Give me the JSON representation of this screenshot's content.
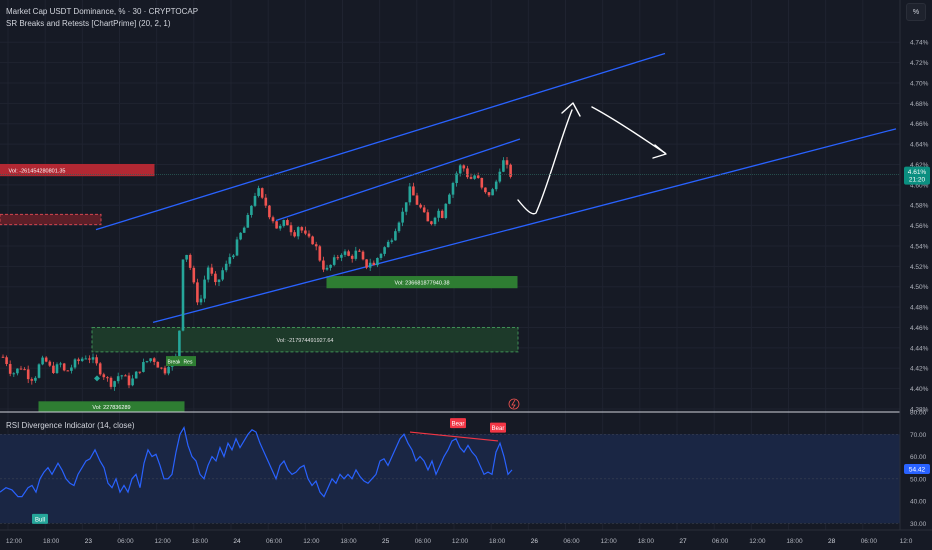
{
  "header": {
    "title": "Market Cap USDT Dominance, % · 30 · CRYPTOCAP",
    "indicator": "SR Breaks and Retests [ChartPrime] (20, 2, 1)",
    "scale_button": "%"
  },
  "rsi_panel": {
    "title": "RSI Divergence Indicator (14, close)"
  },
  "colors": {
    "bg": "#161a25",
    "up": "#26a69a",
    "down": "#ef5350",
    "channel": "#2962ff",
    "rsi": "#2962ff",
    "bear": "#f23645",
    "bull": "#26a69a"
  },
  "chart_data": {
    "type": "candlestick",
    "price_axis": {
      "ticks": [
        "4.74%",
        "4.72%",
        "4.70%",
        "4.68%",
        "4.66%",
        "4.64%",
        "4.62%",
        "4.60%",
        "4.58%",
        "4.56%",
        "4.54%",
        "4.52%",
        "4.50%",
        "4.48%",
        "4.46%",
        "4.44%",
        "4.42%",
        "4.40%",
        "4.38%"
      ],
      "range": [
        4.377,
        4.753
      ]
    },
    "time_axis": {
      "labels": [
        "12:00",
        "18:00",
        "23",
        "06:00",
        "12:00",
        "18:00",
        "24",
        "06:00",
        "12:00",
        "18:00",
        "25",
        "06:00",
        "12:00",
        "18:00",
        "26",
        "06:00",
        "12:00",
        "18:00",
        "27",
        "06:00",
        "12:00",
        "18:00",
        "28",
        "06:00",
        "12:0"
      ]
    },
    "last_price": {
      "value": "4.61%",
      "countdown": "21:20",
      "price": 4.61
    },
    "close_path": [
      [
        0,
        4.432
      ],
      [
        5,
        4.43
      ],
      [
        10,
        4.418
      ],
      [
        15,
        4.415
      ],
      [
        20,
        4.422
      ],
      [
        25,
        4.418
      ],
      [
        30,
        4.41
      ],
      [
        35,
        4.412
      ],
      [
        40,
        4.425
      ],
      [
        45,
        4.428
      ],
      [
        50,
        4.42
      ],
      [
        55,
        4.418
      ],
      [
        60,
        4.425
      ],
      [
        65,
        4.415
      ],
      [
        70,
        4.42
      ],
      [
        75,
        4.425
      ],
      [
        80,
        4.428
      ],
      [
        85,
        4.432
      ],
      [
        90,
        4.43
      ],
      [
        95,
        4.425
      ],
      [
        100,
        4.418
      ],
      [
        105,
        4.412
      ],
      [
        110,
        4.405
      ],
      [
        115,
        4.408
      ],
      [
        120,
        4.415
      ],
      [
        125,
        4.41
      ],
      [
        130,
        4.405
      ],
      [
        135,
        4.412
      ],
      [
        140,
        4.42
      ],
      [
        145,
        4.425
      ],
      [
        150,
        4.43
      ],
      [
        155,
        4.428
      ],
      [
        160,
        4.42
      ],
      [
        165,
        4.418
      ],
      [
        170,
        4.428
      ],
      [
        175,
        4.43
      ],
      [
        178,
        4.43
      ],
      [
        180,
        4.47
      ],
      [
        183,
        4.53
      ],
      [
        186,
        4.535
      ],
      [
        190,
        4.52
      ],
      [
        193,
        4.505
      ],
      [
        196,
        4.49
      ],
      [
        199,
        4.485
      ],
      [
        202,
        4.49
      ],
      [
        205,
        4.51
      ],
      [
        208,
        4.52
      ],
      [
        212,
        4.51
      ],
      [
        215,
        4.5
      ],
      [
        218,
        4.505
      ],
      [
        222,
        4.515
      ],
      [
        226,
        4.52
      ],
      [
        230,
        4.53
      ],
      [
        234,
        4.535
      ],
      [
        238,
        4.545
      ],
      [
        242,
        4.555
      ],
      [
        246,
        4.56
      ],
      [
        250,
        4.575
      ],
      [
        254,
        4.59
      ],
      [
        258,
        4.595
      ],
      [
        262,
        4.585
      ],
      [
        266,
        4.58
      ],
      [
        270,
        4.57
      ],
      [
        274,
        4.565
      ],
      [
        278,
        4.555
      ],
      [
        282,
        4.56
      ],
      [
        286,
        4.565
      ],
      [
        290,
        4.558
      ],
      [
        294,
        4.552
      ],
      [
        298,
        4.56
      ],
      [
        302,
        4.555
      ],
      [
        306,
        4.548
      ],
      [
        310,
        4.545
      ],
      [
        314,
        4.545
      ],
      [
        318,
        4.532
      ],
      [
        322,
        4.522
      ],
      [
        326,
        4.515
      ],
      [
        330,
        4.52
      ],
      [
        334,
        4.525
      ],
      [
        338,
        4.53
      ],
      [
        342,
        4.535
      ],
      [
        346,
        4.532
      ],
      [
        350,
        4.528
      ],
      [
        354,
        4.532
      ],
      [
        358,
        4.535
      ],
      [
        362,
        4.525
      ],
      [
        366,
        4.52
      ],
      [
        370,
        4.525
      ],
      [
        374,
        4.52
      ],
      [
        378,
        4.53
      ],
      [
        382,
        4.535
      ],
      [
        386,
        4.54
      ],
      [
        390,
        4.545
      ],
      [
        394,
        4.555
      ],
      [
        398,
        4.565
      ],
      [
        402,
        4.57
      ],
      [
        406,
        4.585
      ],
      [
        410,
        4.595
      ],
      [
        414,
        4.588
      ],
      [
        418,
        4.58
      ],
      [
        422,
        4.575
      ],
      [
        426,
        4.565
      ],
      [
        430,
        4.56
      ],
      [
        434,
        4.57
      ],
      [
        438,
        4.575
      ],
      [
        442,
        4.57
      ],
      [
        446,
        4.585
      ],
      [
        450,
        4.595
      ],
      [
        454,
        4.605
      ],
      [
        458,
        4.615
      ],
      [
        462,
        4.62
      ],
      [
        466,
        4.612
      ],
      [
        470,
        4.605
      ],
      [
        474,
        4.61
      ],
      [
        478,
        4.605
      ],
      [
        482,
        4.595
      ],
      [
        486,
        4.59
      ],
      [
        490,
        4.592
      ],
      [
        494,
        4.595
      ],
      [
        498,
        4.61
      ],
      [
        502,
        4.625
      ],
      [
        506,
        4.618
      ],
      [
        510,
        4.61
      ],
      [
        514,
        4.61
      ]
    ],
    "channels": [
      {
        "name": "upper",
        "from": [
          96,
          4.556
        ],
        "to": [
          665,
          4.729
        ]
      },
      {
        "name": "middle",
        "from": [
          276,
          4.565
        ],
        "to": [
          520,
          4.645
        ]
      },
      {
        "name": "lower",
        "from": [
          153,
          4.465
        ],
        "to": [
          896,
          4.655
        ]
      }
    ],
    "zones": [
      {
        "label": "Vol: -261454280801.35",
        "x0": 0,
        "x1": 154,
        "top": 4.62,
        "bottom": 4.609,
        "fill": "#b22833",
        "stroke": "#b22833",
        "dashed": false,
        "text_color": "#ffffff"
      },
      {
        "label": "",
        "x0": 0,
        "x1": 101,
        "top": 4.571,
        "bottom": 4.561,
        "fill": "#5c1f28",
        "stroke": "#d0454f",
        "dashed": true,
        "text_color": "#ffffff"
      },
      {
        "label": "Vol: 236681877940.38",
        "x0": 327,
        "x1": 517,
        "top": 4.51,
        "bottom": 4.499,
        "fill": "#2e7d32",
        "stroke": "#2e7d32",
        "dashed": false,
        "text_color": "#ffffff"
      },
      {
        "label": "Vol: -217974491927.64",
        "x0": 92,
        "x1": 518,
        "top": 4.46,
        "bottom": 4.436,
        "fill": "#1d3a2a",
        "stroke": "#3f8f55",
        "dashed": true,
        "text_color": "#e0e0e0"
      },
      {
        "label": "Vol: 227836289",
        "x0": 39,
        "x1": 184,
        "top": 4.387,
        "bottom": 4.378,
        "fill": "#2e7d32",
        "stroke": "#2e7d32",
        "dashed": false,
        "text_color": "#ffffff"
      }
    ],
    "labels": [
      {
        "text": "Break",
        "x": 174,
        "price": 4.426,
        "color": "#2e7d32"
      },
      {
        "text": "Res",
        "x": 188,
        "price": 4.426,
        "color": "#2e7d32"
      }
    ],
    "diamond": {
      "x": 97,
      "price": 4.41,
      "color": "#26a69a"
    },
    "rsi": {
      "ticks": [
        "80.00",
        "70.00",
        "60.00",
        "50.00",
        "40.00",
        "30.00"
      ],
      "range": [
        27,
        80
      ],
      "upper_band": 70,
      "lower_band": 30,
      "mid": 50,
      "value_label": "54.42",
      "values": [
        [
          0,
          44
        ],
        [
          6,
          46
        ],
        [
          12,
          45
        ],
        [
          18,
          42
        ],
        [
          22,
          42
        ],
        [
          28,
          46
        ],
        [
          32,
          47
        ],
        [
          36,
          44
        ],
        [
          40,
          50
        ],
        [
          44,
          53
        ],
        [
          48,
          55
        ],
        [
          52,
          52
        ],
        [
          58,
          57
        ],
        [
          62,
          54
        ],
        [
          66,
          50
        ],
        [
          70,
          48
        ],
        [
          74,
          47
        ],
        [
          78,
          52
        ],
        [
          82,
          55
        ],
        [
          86,
          58
        ],
        [
          90,
          59
        ],
        [
          95,
          63
        ],
        [
          100,
          58
        ],
        [
          104,
          55
        ],
        [
          108,
          48
        ],
        [
          112,
          46
        ],
        [
          116,
          50
        ],
        [
          120,
          44
        ],
        [
          124,
          47
        ],
        [
          128,
          44
        ],
        [
          132,
          50
        ],
        [
          136,
          52
        ],
        [
          140,
          46
        ],
        [
          144,
          57
        ],
        [
          148,
          63
        ],
        [
          152,
          60
        ],
        [
          156,
          61
        ],
        [
          160,
          56
        ],
        [
          164,
          50
        ],
        [
          168,
          50
        ],
        [
          172,
          52
        ],
        [
          176,
          62
        ],
        [
          180,
          70
        ],
        [
          184,
          73
        ],
        [
          188,
          65
        ],
        [
          192,
          60
        ],
        [
          196,
          58
        ],
        [
          200,
          52
        ],
        [
          204,
          50
        ],
        [
          208,
          56
        ],
        [
          212,
          60
        ],
        [
          216,
          58
        ],
        [
          220,
          64
        ],
        [
          224,
          60
        ],
        [
          228,
          66
        ],
        [
          232,
          63
        ],
        [
          236,
          68
        ],
        [
          240,
          64
        ],
        [
          244,
          67
        ],
        [
          248,
          70
        ],
        [
          252,
          72
        ],
        [
          256,
          71
        ],
        [
          260,
          66
        ],
        [
          264,
          62
        ],
        [
          268,
          58
        ],
        [
          272,
          54
        ],
        [
          276,
          50
        ],
        [
          280,
          56
        ],
        [
          284,
          58
        ],
        [
          288,
          54
        ],
        [
          292,
          52
        ],
        [
          296,
          53
        ],
        [
          300,
          55
        ],
        [
          304,
          56
        ],
        [
          308,
          50
        ],
        [
          312,
          47
        ],
        [
          316,
          49
        ],
        [
          320,
          44
        ],
        [
          324,
          42
        ],
        [
          328,
          46
        ],
        [
          332,
          50
        ],
        [
          336,
          48
        ],
        [
          340,
          52
        ],
        [
          344,
          50
        ],
        [
          348,
          52
        ],
        [
          352,
          50
        ],
        [
          356,
          54
        ],
        [
          360,
          51
        ],
        [
          364,
          49
        ],
        [
          368,
          48
        ],
        [
          372,
          50
        ],
        [
          376,
          52
        ],
        [
          380,
          58
        ],
        [
          384,
          59
        ],
        [
          388,
          56
        ],
        [
          392,
          60
        ],
        [
          396,
          64
        ],
        [
          400,
          68
        ],
        [
          404,
          70
        ],
        [
          408,
          66
        ],
        [
          412,
          63
        ],
        [
          416,
          58
        ],
        [
          420,
          60
        ],
        [
          424,
          58
        ],
        [
          428,
          54
        ],
        [
          432,
          58
        ],
        [
          436,
          52
        ],
        [
          440,
          56
        ],
        [
          444,
          60
        ],
        [
          448,
          63
        ],
        [
          452,
          67
        ],
        [
          456,
          68
        ],
        [
          460,
          64
        ],
        [
          464,
          62
        ],
        [
          468,
          65
        ],
        [
          472,
          62
        ],
        [
          476,
          60
        ],
        [
          480,
          56
        ],
        [
          484,
          52
        ],
        [
          488,
          53
        ],
        [
          492,
          52
        ],
        [
          496,
          62
        ],
        [
          500,
          66
        ],
        [
          504,
          60
        ],
        [
          508,
          52
        ],
        [
          512,
          54
        ]
      ],
      "divergence_line": {
        "from": [
          410,
          71
        ],
        "to": [
          498,
          67
        ]
      },
      "signals": [
        {
          "text": "Bull",
          "x": 40,
          "value": 32,
          "color": "#26a69a"
        },
        {
          "text": "Bear",
          "x": 458,
          "value": 75,
          "color": "#f23645"
        },
        {
          "text": "Bear",
          "x": 498,
          "value": 73,
          "color": "#f23645"
        }
      ]
    }
  }
}
